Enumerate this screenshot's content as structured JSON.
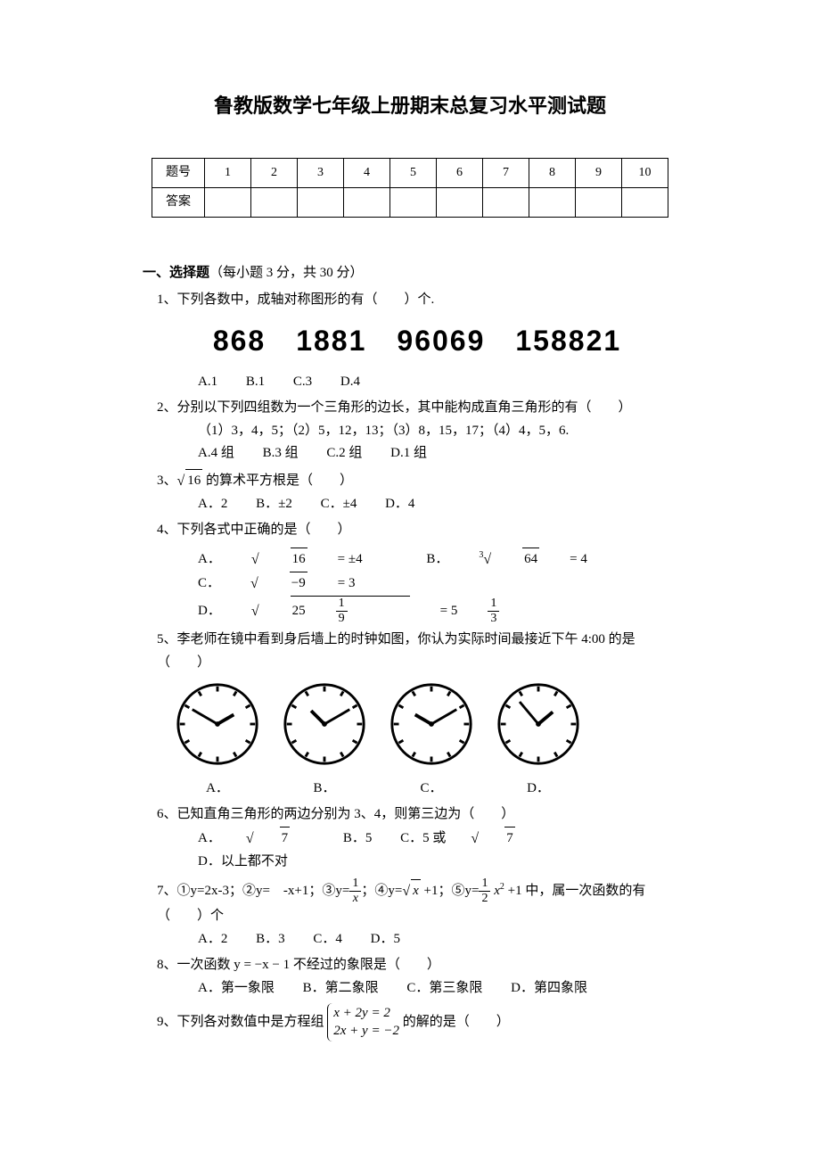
{
  "title": "鲁教版数学七年级上册期末总复习水平测试题",
  "answer_table": {
    "row1_label": "题号",
    "row2_label": "答案",
    "cols": [
      "1",
      "2",
      "3",
      "4",
      "5",
      "6",
      "7",
      "8",
      "9",
      "10"
    ]
  },
  "section1_title": "一、选择题",
  "section1_note": "（每小题 3 分，共 30 分）",
  "q1": {
    "stem": "1、下列各数中，成轴对称图形的有（　　）个.",
    "digits": "868　1881　96069　158821",
    "A": "A.1",
    "B": "B.1",
    "C": "C.3",
    "D": "D.4"
  },
  "q2": {
    "stem": "2、分别以下列四组数为一个三角形的边长，其中能构成直角三角形的有（　　）",
    "sub": "（1）3，4，5；（2）5，12，13；（3）8，15，17；（4）4，5，6.",
    "A": "A.4 组",
    "B": "B.3 组",
    "C": "C.2 组",
    "D": "D.1 组"
  },
  "q3": {
    "stem_pre": "3、",
    "stem_mid": "16",
    "stem_post": " 的算术平方根是（　　）",
    "A": "A．2",
    "B": "B．±2",
    "C": "C．±4",
    "D": "D．4"
  },
  "q4": {
    "stem": "4、下列各式中正确的是（　　）",
    "A_pre": "A．",
    "A_rad": "16",
    "A_post": " = ±4",
    "B_pre": "B．",
    "B_sup": "3",
    "B_rad": "64",
    "B_post": " = 4",
    "C_pre": "C．",
    "C_rad": "−9",
    "C_post": " = 3",
    "D_pre": "D．",
    "D_rad_int": "25",
    "D_rad_num": "1",
    "D_rad_den": "9",
    "D_eq": " = 5",
    "D_res_num": "1",
    "D_res_den": "3"
  },
  "q5": {
    "stem": "5、李老师在镜中看到身后墙上的时钟如图，你认为实际时间最接近下午 4:00 的是（　　）",
    "labels": {
      "A": "A．",
      "B": "B．",
      "C": "C．",
      "D": "D．"
    },
    "clocks": [
      {
        "hour_angle": 60,
        "minute_angle": -60
      },
      {
        "hour_angle": -45,
        "minute_angle": 60
      },
      {
        "hour_angle": -60,
        "minute_angle": 60
      },
      {
        "hour_angle": 50,
        "minute_angle": -40
      }
    ],
    "tick_color": "#000000",
    "face_color": "#ffffff"
  },
  "q6": {
    "stem": "6、已知直角三角形的两边分别为 3、4，则第三边为（　　）",
    "A_pre": "A．",
    "A_rad": "7",
    "B": "B．5",
    "C_pre": "C．5 或 ",
    "C_rad": "7",
    "D": "D．以上都不对"
  },
  "q7": {
    "stem_pre": "7、①y=2x-3；②y=　-x+1；③y=",
    "f1_num": "1",
    "f1_den": "x",
    "stem_mid1": "；④y=",
    "rad": "x",
    "stem_mid2": " +1；⑤y=",
    "f2_num": "1",
    "f2_den": "2",
    "stem_mid3": " x",
    "sup": "2",
    "stem_post": " +1 中，属一次函数的有（　　）个",
    "A": "A．2",
    "B": "B．3",
    "C": "C．4",
    "D": "D．5"
  },
  "q8": {
    "stem": "8、一次函数 y = −x − 1 不经过的象限是（　　）",
    "A": "A．第一象限",
    "B": "B．第二象限",
    "C": "C．第三象限",
    "D": "D．第四象限"
  },
  "q9": {
    "stem_pre": "9、下列各对数值中是方程组",
    "eq1": "x + 2y = 2",
    "eq2": "2x + y = −2",
    "stem_post": " 的解的是（　　）"
  },
  "colors": {
    "text": "#000000",
    "background": "#ffffff",
    "border": "#000000"
  }
}
